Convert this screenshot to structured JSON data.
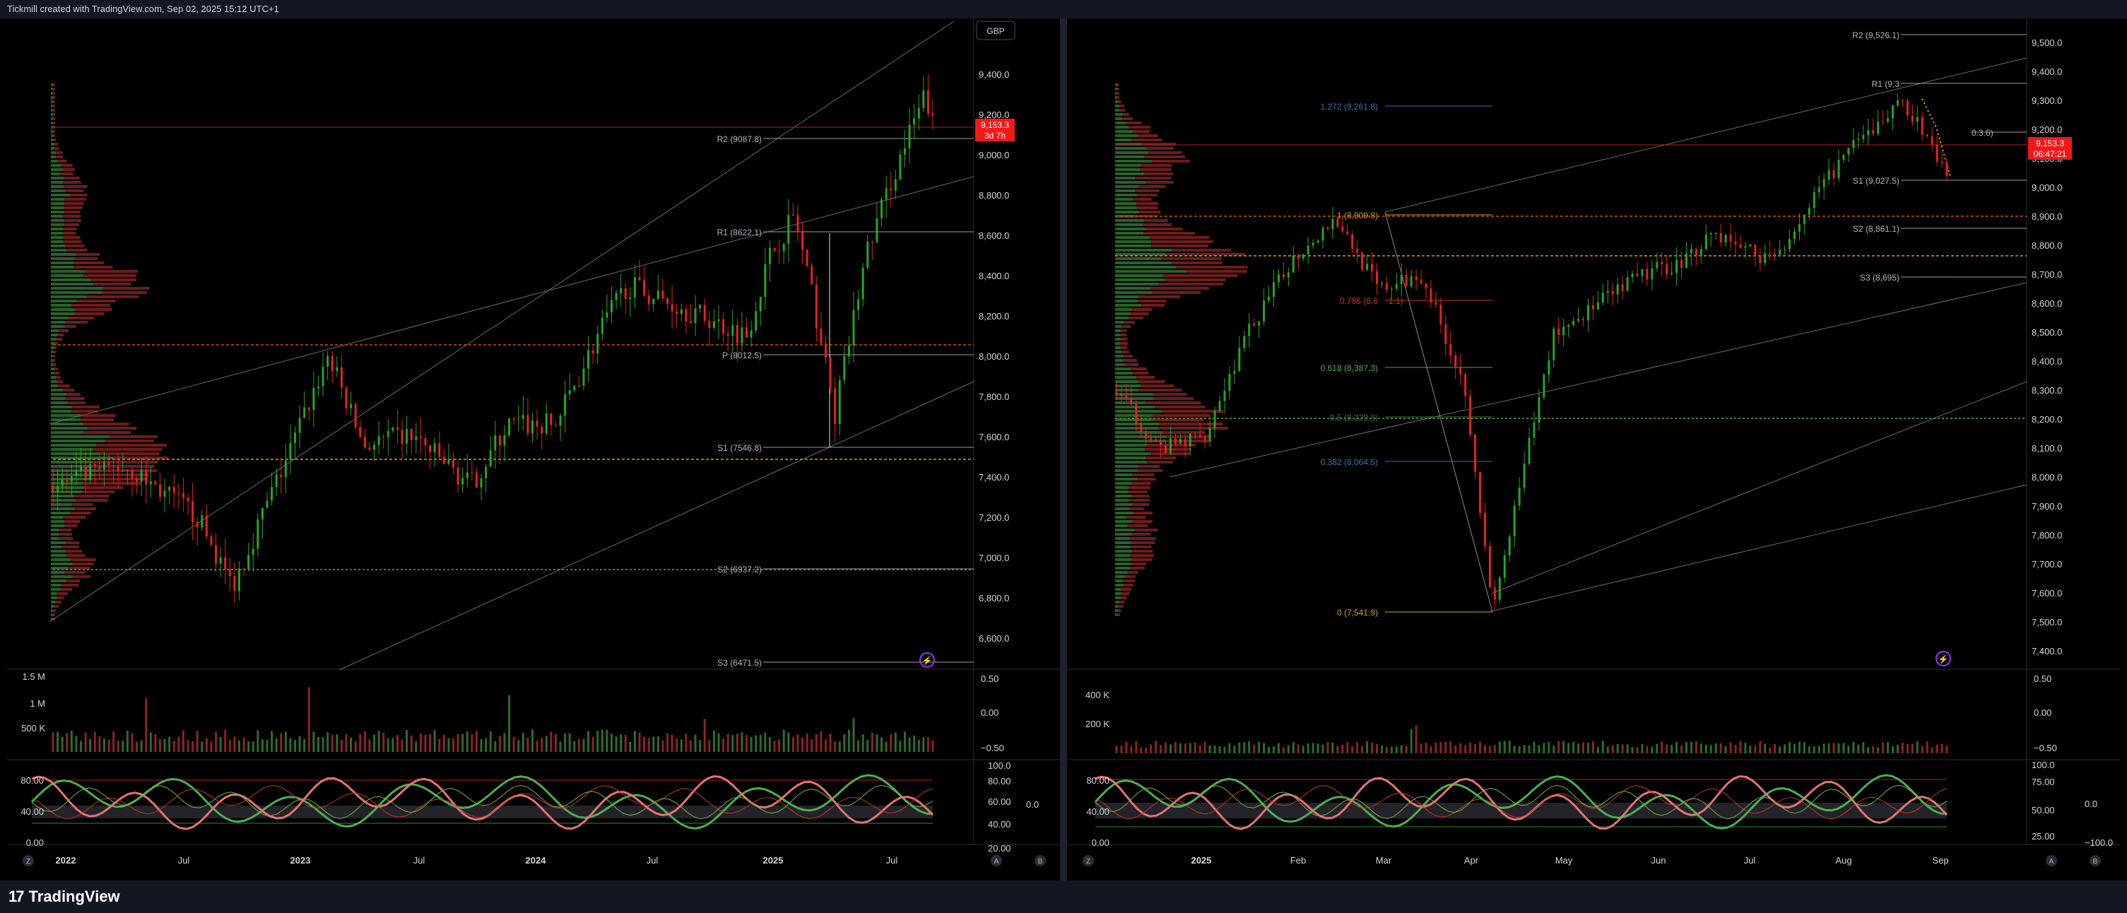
{
  "header": {
    "attribution": "Tickmill created with TradingView.com, Sep 02, 2025 15:12 UTC+1"
  },
  "footer": {
    "brand": "TradingView"
  },
  "left_panel": {
    "currency": "GBP",
    "price_tag": "9,153.3",
    "time_tag": "3d 7h",
    "axis": [
      "9,400.0",
      "9,200.0",
      "9,000.0",
      "8,800.0",
      "8,600.0",
      "8,400.0",
      "8,200.0",
      "8,000.0",
      "7,800.0",
      "7,600.0",
      "7,400.0",
      "7,200.0",
      "7,000.0",
      "6,800.0",
      "6,600.0"
    ],
    "pivots": [
      "R2 (9087.8)",
      "R1 (8622.1)",
      "P (8012.5)",
      "S1 (7546.8)",
      "S2 (6937.2)",
      "S3 (6471.5)"
    ],
    "volume_axis": [
      "1.5 M",
      "1 M",
      "500 K"
    ],
    "volume_right": [
      "0.50",
      "0.00",
      "−0.50"
    ],
    "osc_left": [
      "80.00",
      "40.00",
      "0.00"
    ],
    "osc_right": [
      "100.0",
      "80.00",
      "60.00",
      "40.00",
      "20.00"
    ],
    "osc_mid": "0.0",
    "time_axis": [
      "2022",
      "Jul",
      "2023",
      "Jul",
      "2024",
      "Jul",
      "2025",
      "Jul"
    ]
  },
  "right_panel": {
    "price_tag": "9,153.3",
    "time_tag": "06:47:21",
    "axis": [
      "9,500.0",
      "9,400.0",
      "9,300.0",
      "9,200.0",
      "9,100.0",
      "9,000.0",
      "8,900.0",
      "8,800.0",
      "8,700.0",
      "8,600.0",
      "8,500.0",
      "8,400.0",
      "8,300.0",
      "8,200.0",
      "8,100.0",
      "8,000.0",
      "7,900.0",
      "7,800.0",
      "7,700.0",
      "7,600.0",
      "7,500.0",
      "7,400.0"
    ],
    "pivots": [
      "R2 (9,526.1)",
      "R1 (9,3",
      "0.3.6)",
      "S1 (9,027.5)",
      "S2 (8,861.1)",
      "S3 (8,695)"
    ],
    "fib": [
      "1.272 (9,261.8)",
      "1 (8,909.8)",
      "0.786 (8,6",
      "1.1)",
      "0.618 (8,387.3)",
      "0.5 (8,229.8)",
      "0.382 (8,064.5)",
      "0 (7,541.9)"
    ],
    "volume_axis": [
      "400 K",
      "200 K"
    ],
    "volume_right": [
      "0.50",
      "0.00",
      "−0.50"
    ],
    "osc_left": [
      "80.00",
      "40.00",
      "0.00"
    ],
    "osc_right": [
      "100.0",
      "75.00",
      "50.00",
      "25.00"
    ],
    "osc_right2": [
      "0.0",
      "−100.0"
    ],
    "time_axis": [
      "2025",
      "Feb",
      "Mar",
      "Apr",
      "May",
      "Jun",
      "Jul",
      "Aug",
      "Sep"
    ]
  },
  "chart_data": [
    {
      "type": "candlestick",
      "title": "",
      "currency": "GBP",
      "x": [
        "2022",
        "Jul",
        "2023",
        "Jul",
        "2024",
        "Jul",
        "2025",
        "Jul"
      ],
      "y_range": [
        6500,
        9500
      ],
      "path_points": [
        [
          2022.0,
          7350
        ],
        [
          2022.3,
          7450
        ],
        [
          2022.6,
          7200
        ],
        [
          2022.75,
          6850
        ],
        [
          2023.0,
          7550
        ],
        [
          2023.15,
          8000
        ],
        [
          2023.3,
          7550
        ],
        [
          2023.5,
          7600
        ],
        [
          2023.75,
          7350
        ],
        [
          2023.9,
          7650
        ],
        [
          2024.1,
          7650
        ],
        [
          2024.3,
          8150
        ],
        [
          2024.4,
          8350
        ],
        [
          2024.6,
          8250
        ],
        [
          2024.9,
          8100
        ],
        [
          2025.0,
          8500
        ],
        [
          2025.1,
          8700
        ],
        [
          2025.2,
          8150
        ],
        [
          2025.27,
          7700
        ],
        [
          2025.4,
          8500
        ],
        [
          2025.5,
          8850
        ],
        [
          2025.65,
          9300
        ],
        [
          2025.68,
          9150
        ]
      ],
      "pivots": {
        "R2": 9087.8,
        "R1": 8622.1,
        "P": 8012.5,
        "S1": 7546.8,
        "S2": 6937.2,
        "S3": 6471.5
      },
      "last_price": 9153.3
    },
    {
      "type": "candlestick",
      "title": "",
      "x": [
        "2025",
        "Feb",
        "Mar",
        "Apr",
        "May",
        "Jun",
        "Jul",
        "Aug",
        "Sep"
      ],
      "y_range": [
        7400,
        9550
      ],
      "path_points": [
        [
          2024.95,
          8300
        ],
        [
          2025.0,
          8100
        ],
        [
          2025.05,
          8150
        ],
        [
          2025.1,
          8500
        ],
        [
          2025.15,
          8750
        ],
        [
          2025.2,
          8900
        ],
        [
          2025.25,
          8650
        ],
        [
          2025.3,
          8700
        ],
        [
          2025.35,
          8300
        ],
        [
          2025.38,
          7540
        ],
        [
          2025.45,
          8500
        ],
        [
          2025.55,
          8700
        ],
        [
          2025.6,
          8750
        ],
        [
          2025.63,
          8850
        ],
        [
          2025.7,
          8750
        ],
        [
          2025.78,
          9100
        ],
        [
          2025.85,
          9300
        ],
        [
          2025.88,
          9150
        ],
        [
          2025.9,
          9050
        ]
      ],
      "pivots": {
        "R2": 9526.1,
        "S1": 9027.5,
        "S2": 8861.1,
        "S3": 8695
      },
      "fibonacci": {
        "1.272": 9261.8,
        "1": 8909.8,
        "0.618": 8387.3,
        "0.5": 8229.8,
        "0.382": 8064.5,
        "0": 7541.9
      },
      "last_price": 9153.3
    }
  ]
}
